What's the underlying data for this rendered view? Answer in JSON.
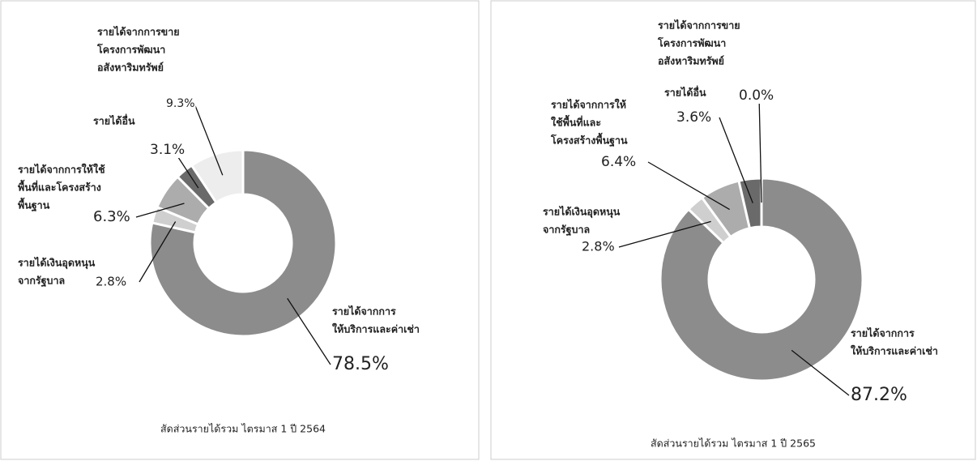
{
  "chart_data": [
    {
      "type": "donut",
      "title": "สัดส่วนรายได้รวม ไตรมาส 1 ปี 2564",
      "categories": [
        [
          "รายได้จากการ",
          "ให้บริการและค่าเช่า"
        ],
        [
          "รายได้เงินอุดหนุน",
          "จากรัฐบาล"
        ],
        [
          "รายได้จากการให้ใช้",
          "พื้นที่และโครงสร้าง",
          "พื้นฐาน"
        ],
        [
          "รายได้อื่น"
        ],
        [
          "รายได้จากการขาย",
          "โครงการพัฒนา",
          "อสังหาริมทรัพย์"
        ]
      ],
      "values": [
        78.5,
        2.8,
        6.3,
        3.1,
        9.3
      ],
      "value_labels": [
        "78.5%",
        "2.8%",
        "6.3%",
        "3.1%",
        "9.3%"
      ],
      "colors": [
        "#8c8c8c",
        "#cfcfcf",
        "#acacac",
        "#6a6a6a",
        "#ededed"
      ]
    },
    {
      "type": "donut",
      "title": "สัดส่วนรายได้รวม ไตรมาส 1 ปี 2565",
      "categories": [
        [
          "รายได้จากการ",
          "ให้บริการและค่าเช่า"
        ],
        [
          "รายได้เงินอุดหนุน",
          "จากรัฐบาล"
        ],
        [
          "รายได้จากการให้",
          "ใช้พื้นที่และ",
          "โครงสร้างพื้นฐาน"
        ],
        [
          "รายได้อื่น"
        ],
        [
          "รายได้จากการขาย",
          "โครงการพัฒนา",
          "อสังหาริมทรัพย์"
        ]
      ],
      "values": [
        87.2,
        2.8,
        6.4,
        3.6,
        0.0
      ],
      "value_labels": [
        "87.2%",
        "2.8%",
        "6.4%",
        "3.6%",
        "0.0%"
      ],
      "colors": [
        "#8c8c8c",
        "#cfcfcf",
        "#acacac",
        "#6a6a6a",
        "#ededed"
      ]
    }
  ]
}
